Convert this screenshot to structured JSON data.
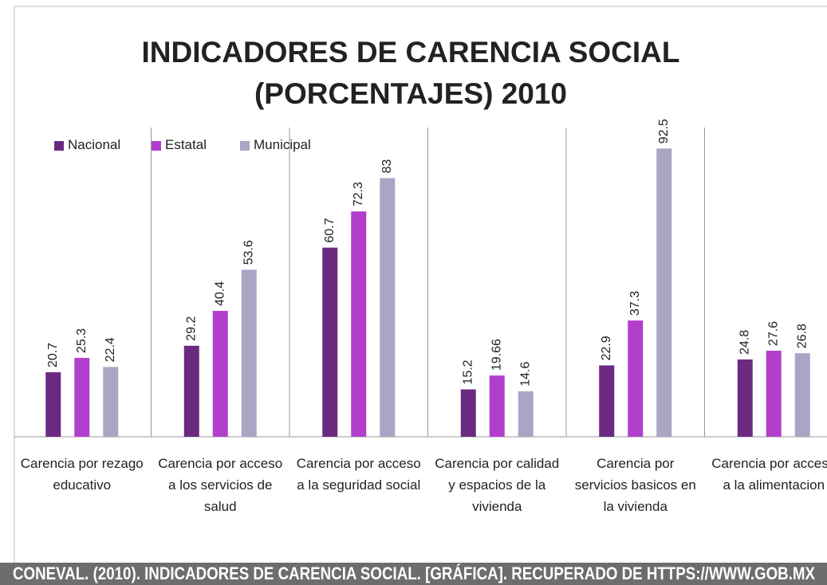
{
  "chart_data": {
    "type": "bar",
    "title": "INDICADORES DE CARENCIA SOCIAL (PORCENTAJES) 2010",
    "categories": [
      "Carencia por rezago educativo",
      "Carencia por acceso a los servicios de salud",
      "Carencia por acceso a la seguridad social",
      "Carencia por calidad y espacios de la vivienda",
      "Carencia por servicios basicos en la vivienda",
      "Carencia por acceso a la alimentacion"
    ],
    "series": [
      {
        "name": "Nacional",
        "color": "#6b2a80",
        "values": [
          20.7,
          29.2,
          60.7,
          15.2,
          22.9,
          24.8
        ]
      },
      {
        "name": "Estatal",
        "color": "#b23fcc",
        "values": [
          25.3,
          40.4,
          72.3,
          19.66,
          37.3,
          27.6
        ]
      },
      {
        "name": "Municipal",
        "color": "#a8a5c5",
        "values": [
          22.4,
          53.6,
          83,
          14.6,
          92.5,
          26.8
        ]
      }
    ],
    "ylim": [
      0,
      100
    ],
    "legend": "top-left",
    "caption": "CONEVAL. (2010). INDICADORES DE CARENCIA SOCIAL. [GRÁFICA]. RECUPERADO DE HTTPS://WWW.GOB.MX"
  }
}
